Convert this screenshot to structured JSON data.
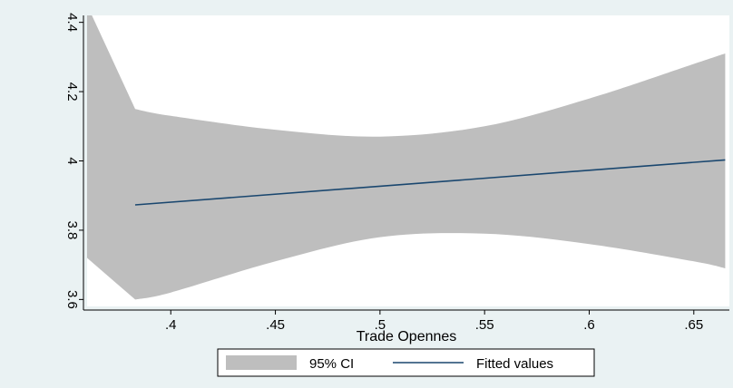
{
  "chart_data": {
    "type": "line",
    "title": "",
    "xlabel": "Trade Opennes",
    "ylabel": "",
    "xlim": [
      0.36,
      0.667
    ],
    "ylim": [
      3.58,
      4.42
    ],
    "x_ticks": [
      0.4,
      0.45,
      0.5,
      0.55,
      0.6,
      0.65
    ],
    "x_tick_labels": [
      ".4",
      ".45",
      ".5",
      ".55",
      ".6",
      ".65"
    ],
    "y_ticks": [
      3.6,
      3.8,
      4,
      4.2,
      4.4
    ],
    "y_tick_labels": [
      "3.6",
      "3.8",
      "4",
      "4.2",
      "4.4"
    ],
    "grid": false,
    "legend_position": "bottom",
    "colors": {
      "background": "#eaf2f3",
      "plot_area": "#ffffff",
      "ci_fill": "#bebebe",
      "fitted_line": "#1a476f"
    },
    "series": [
      {
        "name": "95% CI",
        "kind": "area",
        "x": [
          0.36,
          0.383,
          0.4,
          0.45,
          0.5,
          0.55,
          0.6,
          0.65,
          0.665
        ],
        "upper": [
          4.45,
          4.15,
          4.13,
          4.09,
          4.07,
          4.1,
          4.18,
          4.28,
          4.31
        ],
        "lower": [
          3.72,
          3.6,
          3.62,
          3.71,
          3.78,
          3.79,
          3.76,
          3.71,
          3.69
        ]
      },
      {
        "name": "Fitted values",
        "kind": "line",
        "x": [
          0.383,
          0.665
        ],
        "y": [
          3.873,
          4.003
        ]
      }
    ]
  }
}
